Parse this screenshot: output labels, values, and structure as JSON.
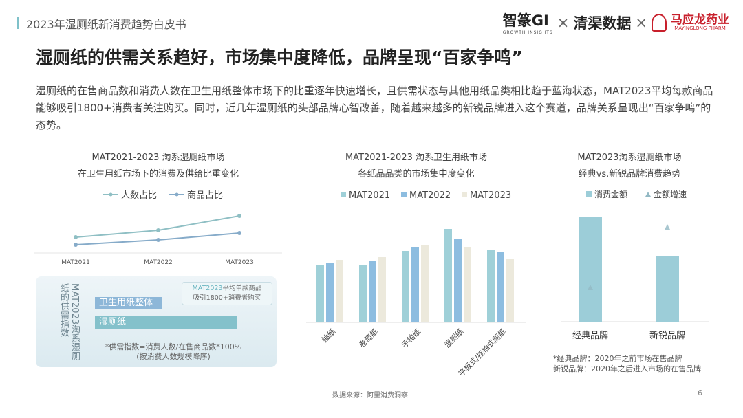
{
  "header": {
    "doc_title": "2023年湿厕纸新消费趋势白皮书",
    "logos": {
      "zhizhuan": "智篆GI",
      "zhizhuan_sub": "GROWTH INSIGHTS",
      "times": "×",
      "qingqu": "清渠数据",
      "mayinglong": "马应龙药业",
      "mayinglong_sub": "MAYINGLONG PHARM"
    }
  },
  "title": "湿厕纸的供需关系趋好，市场集中度降低，品牌呈现“百家争鸣”",
  "paragraph": "湿厕纸的在售商品数和消费人数在卫生用纸整体市场下的比重逐年快速增长，且供需状态与其他用纸品类相比趋于蓝海状态，MAT2023平均每款商品能够吸引1800+消费者关注购买。同时，近几年湿厕纸的头部品牌心智改善，随着越来越多的新锐品牌进入这个赛道，品牌关系呈现出“百家争鸣”的态势。",
  "chart_data": [
    {
      "type": "line",
      "title": "MAT2021-2023 淘系湿厕纸市场",
      "subtitle": "在卫生用纸市场下的消费及供给比重变化",
      "categories": [
        "MAT2021",
        "MAT2022",
        "MAT2023"
      ],
      "legend_position": "top",
      "grid": false,
      "y_axis_shown": false,
      "series": [
        {
          "name": "人数占比",
          "values": [
            15,
            25,
            46
          ],
          "color": "#8fbfc4"
        },
        {
          "name": "商品占比",
          "values": [
            4,
            11,
            21
          ],
          "color": "#86abc9"
        }
      ]
    },
    {
      "type": "bar",
      "orientation": "horizontal",
      "title": "MAT2023淘系湿厕纸的供需指数",
      "categories": [
        "卫生用纸整体",
        "湿厕纸"
      ],
      "values": [
        58,
        100
      ],
      "colors": [
        "#8db7d8",
        "#84c1cb"
      ],
      "callout": {
        "highlight": "MAT2023",
        "text": "平均单款商品",
        "text2": "吸引1800+消费者购买"
      },
      "note": "*供需指数=消费人数/在售商品数*100%",
      "note2": "(按消费人数规模降序)"
    },
    {
      "type": "bar",
      "title": "MAT2021-2023 淘系卫生用纸市场",
      "subtitle": "各纸品品类的市场集中度变化",
      "categories": [
        "抽纸",
        "卷筒纸",
        "手帕纸",
        "湿厕纸",
        "平板式/挂抽式厕纸"
      ],
      "legend_position": "top",
      "grid": false,
      "y_axis_shown": false,
      "series": [
        {
          "name": "MAT2021",
          "values": [
            84,
            83,
            104,
            136,
            106
          ],
          "color": "#9fd0d8"
        },
        {
          "name": "MAT2022",
          "values": [
            86,
            90,
            110,
            121,
            103
          ],
          "color": "#8dbde0"
        },
        {
          "name": "MAT2023",
          "values": [
            91,
            95,
            113,
            110,
            93
          ],
          "color": "#ece9dc"
        }
      ]
    },
    {
      "type": "bar",
      "title": "MAT2023淘系湿厕纸市场",
      "subtitle": "经典vs.新锐品牌消费趋势",
      "categories": [
        "经典品牌",
        "新锐品牌"
      ],
      "legend_position": "top",
      "grid": false,
      "y_axis_shown": false,
      "series": [
        {
          "name": "消费金额",
          "type": "bar",
          "values": [
            152,
            96
          ],
          "color": "#9ccdd8"
        },
        {
          "name": "金额增速",
          "type": "marker-triangle",
          "values": [
            50,
            138
          ],
          "color": "#93b9c4"
        }
      ],
      "note": "*经典品牌：2020年之前市场在售品牌",
      "note2": "新锐品牌：2020年之后进入市场的在售品牌"
    }
  ],
  "footer": {
    "source": "数据来源：阿里消费洞察",
    "page": "6"
  }
}
